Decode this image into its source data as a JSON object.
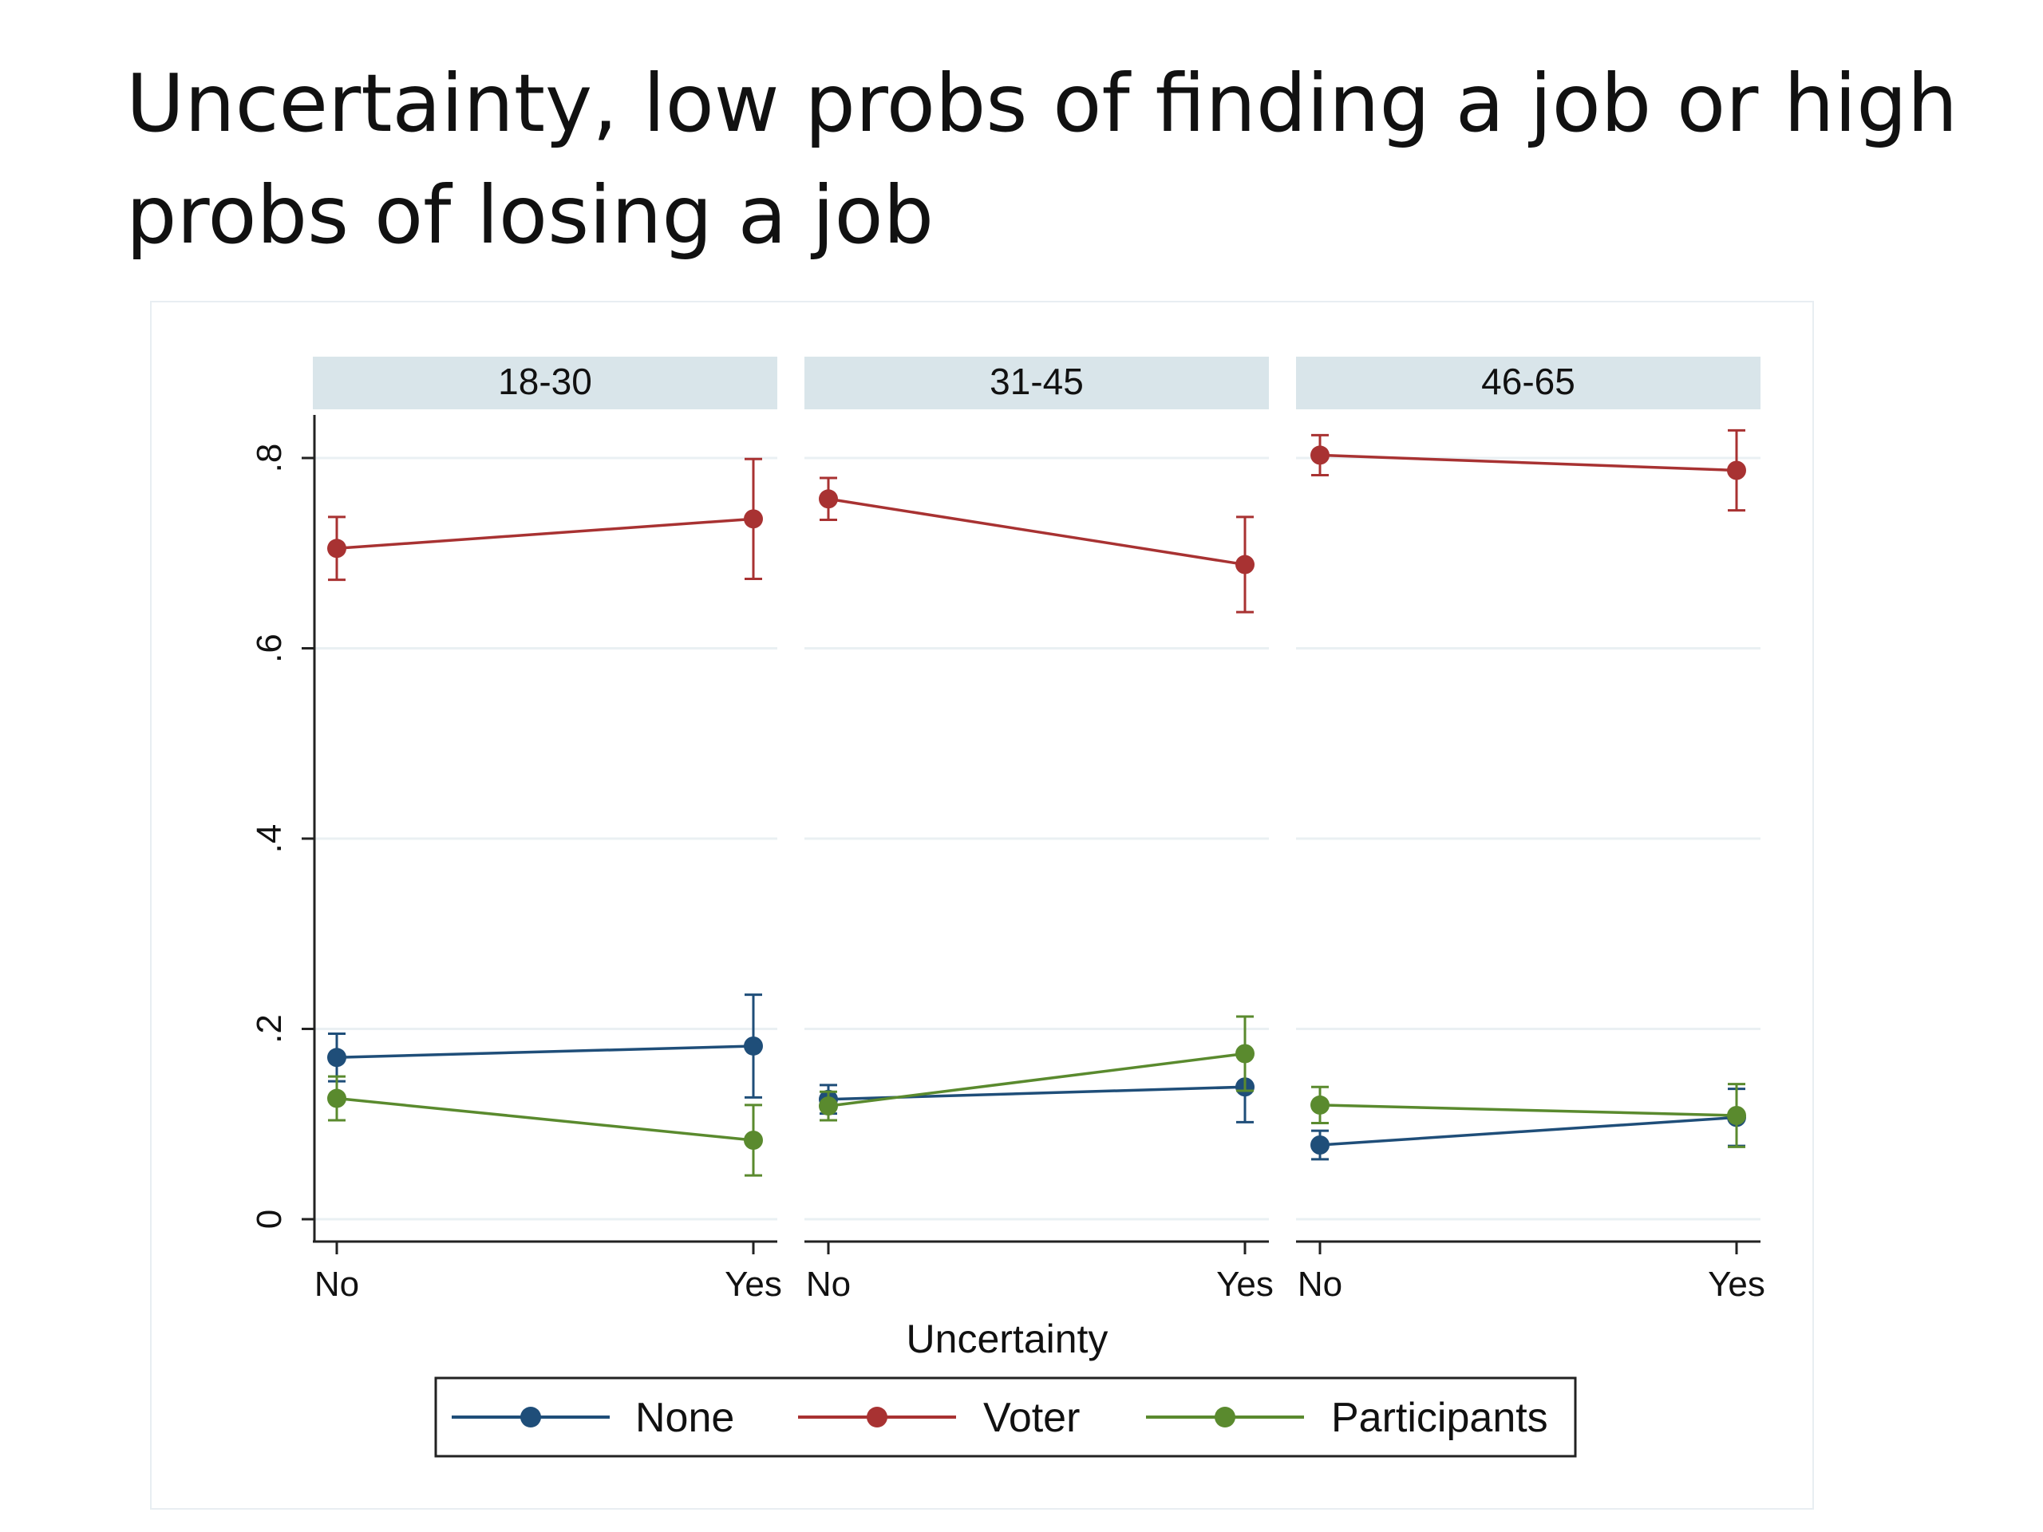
{
  "slide": {
    "title": "Uncertainty, low probs of finding a job or high probs of losing a job"
  },
  "chart_data": {
    "type": "line",
    "subtype": "faceted line with 95% confidence-interval error bars",
    "panels": [
      "18-30",
      "31-45",
      "46-65"
    ],
    "categories": [
      "No",
      "Yes"
    ],
    "xlabel": "Uncertainty",
    "ylabel": "",
    "ylim": [
      0,
      0.8
    ],
    "yticks": [
      0,
      0.2,
      0.4,
      0.6,
      0.8
    ],
    "ytick_labels": [
      "0",
      ".2",
      ".4",
      ".6",
      ".8"
    ],
    "grid": true,
    "legend_position": "bottom",
    "series": [
      {
        "name": "None",
        "color": "#1f4e79",
        "panels": [
          {
            "values": [
              0.17,
              0.182
            ],
            "lower": [
              0.145,
              0.128
            ],
            "upper": [
              0.195,
              0.236
            ]
          },
          {
            "values": [
              0.126,
              0.139
            ],
            "lower": [
              0.111,
              0.102
            ],
            "upper": [
              0.141,
              0.176
            ]
          },
          {
            "values": [
              0.078,
              0.107
            ],
            "lower": [
              0.063,
              0.077
            ],
            "upper": [
              0.093,
              0.137
            ]
          }
        ]
      },
      {
        "name": "Voter",
        "color": "#a83232",
        "panels": [
          {
            "values": [
              0.705,
              0.736
            ],
            "lower": [
              0.672,
              0.673
            ],
            "upper": [
              0.738,
              0.799
            ]
          },
          {
            "values": [
              0.757,
              0.688
            ],
            "lower": [
              0.735,
              0.638
            ],
            "upper": [
              0.779,
              0.738
            ]
          },
          {
            "values": [
              0.803,
              0.787
            ],
            "lower": [
              0.782,
              0.745
            ],
            "upper": [
              0.824,
              0.829
            ]
          }
        ]
      },
      {
        "name": "Participants",
        "color": "#5a8a2e",
        "panels": [
          {
            "values": [
              0.127,
              0.083
            ],
            "lower": [
              0.104,
              0.046
            ],
            "upper": [
              0.15,
              0.12
            ]
          },
          {
            "values": [
              0.119,
              0.174
            ],
            "lower": [
              0.104,
              0.135
            ],
            "upper": [
              0.134,
              0.213
            ]
          },
          {
            "values": [
              0.12,
              0.109
            ],
            "lower": [
              0.101,
              0.076
            ],
            "upper": [
              0.139,
              0.142
            ]
          }
        ]
      }
    ]
  }
}
